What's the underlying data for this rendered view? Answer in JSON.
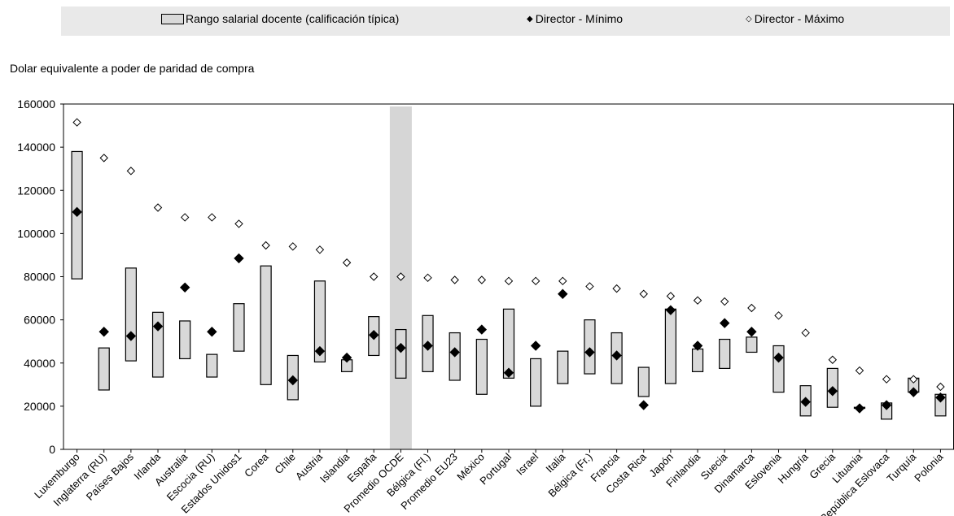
{
  "legend": {
    "range_label": "Rango salarial docente (calificación típica)",
    "min_label": "Director - Mínimo",
    "max_label": "Director - Máximo"
  },
  "y_axis_unit": "Dolar equivalente a poder de paridad de compra",
  "colors": {
    "bar_fill": "#d9d9d9",
    "highlight": "#d6d6d6",
    "legend_bg": "#e9e9e9"
  },
  "chart_data": {
    "type": "bar",
    "ylim": [
      0,
      160000
    ],
    "yticks": [
      0,
      20000,
      40000,
      60000,
      80000,
      100000,
      120000,
      140000,
      160000
    ],
    "highlight_category": "Promedio OCDE",
    "categories": [
      "Luxemburgo",
      "Inglaterra (RU)",
      "Países Bajos",
      "Irlanda",
      "Australia",
      "Escocia (RU)",
      "Estados Unidos1",
      "Corea",
      "Chile",
      "Austria",
      "Islandia",
      "España",
      "Promedio OCDE",
      "Bélgica (Fl.)",
      "Promedio EU23",
      "México",
      "Portugal",
      "Israel",
      "Italia",
      "Bélgica (Fr.)",
      "Francia",
      "Costa Rica",
      "Japón",
      "Finlandia",
      "Suecia",
      "Dinamarca",
      "Eslovenia",
      "Hungría",
      "Grecia",
      "Lituania",
      "República Eslovaca",
      "Turquía",
      "Polonia"
    ],
    "series": [
      {
        "name": "Rango salarial docente (calificación típica)",
        "kind": "range",
        "low": [
          79000,
          27500,
          41000,
          33500,
          42000,
          33500,
          45500,
          30000,
          23000,
          40500,
          36000,
          43500,
          33000,
          36000,
          32000,
          25500,
          33000,
          20000,
          30500,
          35000,
          30500,
          24500,
          30500,
          36000,
          37500,
          45000,
          26500,
          15500,
          19500,
          19000,
          14000,
          26500,
          15500
        ],
        "high": [
          138000,
          47000,
          84000,
          63500,
          59500,
          44000,
          67500,
          85000,
          43500,
          78000,
          41500,
          61500,
          55500,
          62000,
          54000,
          51000,
          65000,
          42000,
          45500,
          60000,
          54000,
          38000,
          65000,
          46500,
          51000,
          52000,
          48000,
          29500,
          37500,
          19500,
          21500,
          33000,
          25500
        ]
      },
      {
        "name": "Director - Mínimo",
        "kind": "marker",
        "values": [
          110000,
          54500,
          52500,
          57000,
          75000,
          54500,
          88500,
          null,
          32000,
          45500,
          42500,
          53000,
          47000,
          48000,
          45000,
          55500,
          35500,
          48000,
          72000,
          45000,
          43500,
          20500,
          64500,
          48000,
          58500,
          54500,
          42500,
          22000,
          27000,
          19000,
          20500,
          26500,
          24000
        ]
      },
      {
        "name": "Director - Máximo",
        "kind": "marker",
        "values": [
          151500,
          135000,
          129000,
          112000,
          107500,
          107500,
          104500,
          94500,
          94000,
          92500,
          86500,
          80000,
          80000,
          79500,
          78500,
          78500,
          78000,
          78000,
          78000,
          75500,
          74500,
          72000,
          71000,
          69000,
          68500,
          65500,
          62000,
          54000,
          41500,
          36500,
          32500,
          32500,
          29000
        ]
      }
    ]
  }
}
